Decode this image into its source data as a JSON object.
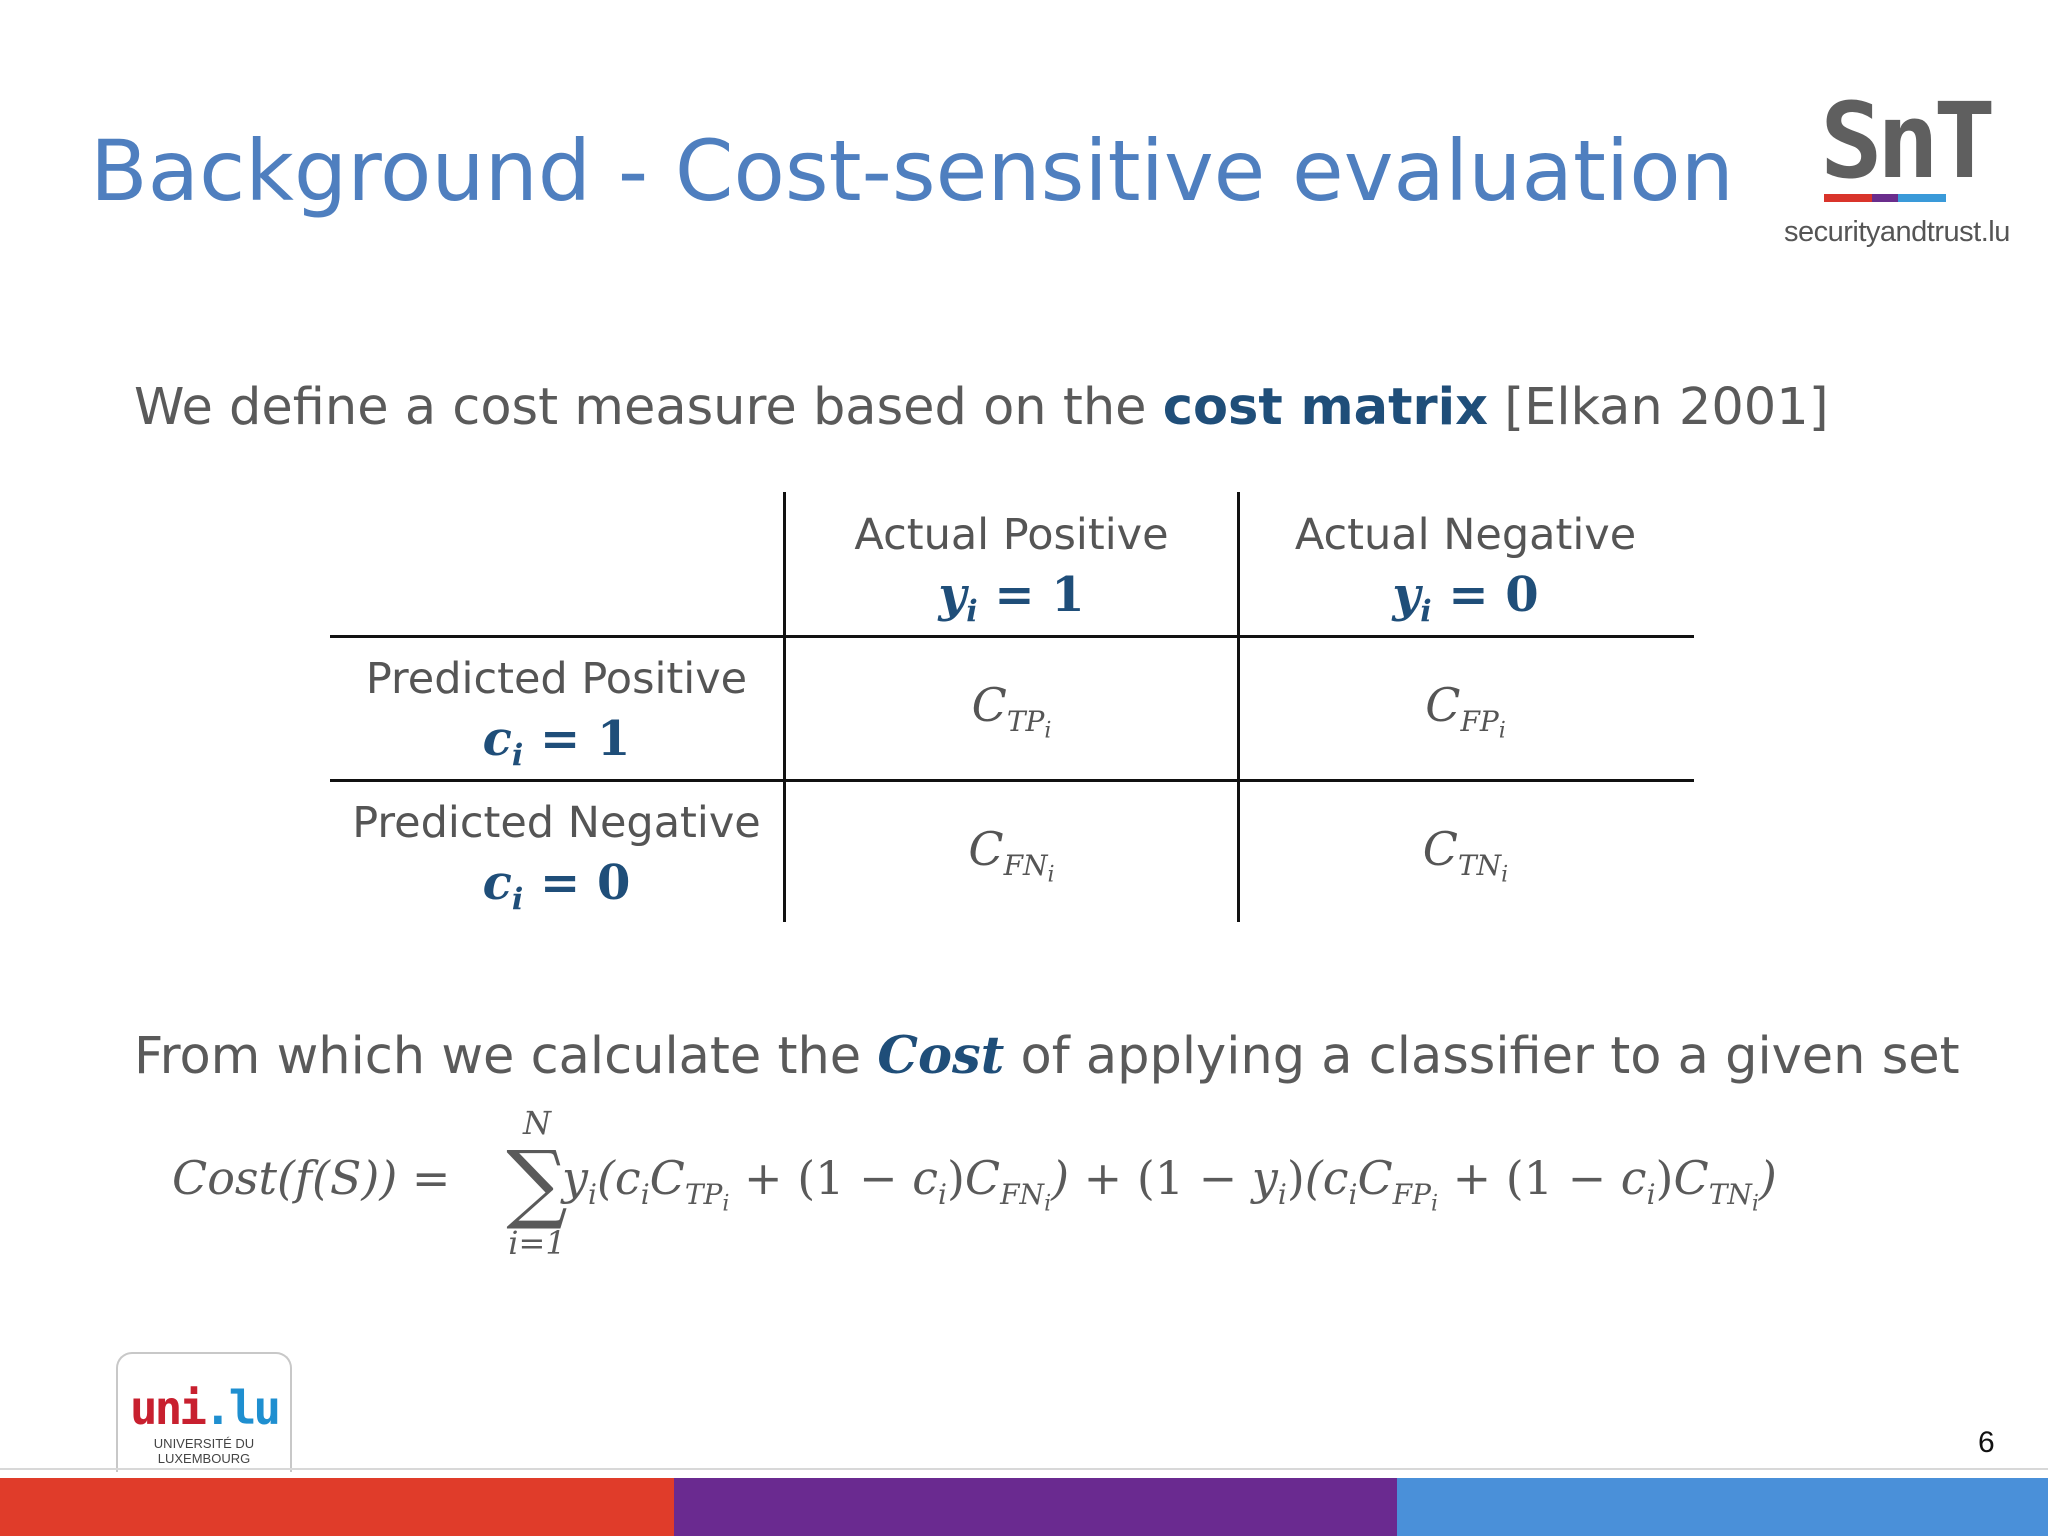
{
  "title": "Background - Cost-sensitive evaluation",
  "snt_logo": {
    "letters": "SnT",
    "domain": "securityandtrust.lu",
    "bar_colors": [
      "#d9342b",
      "#6a2d8c",
      "#3a9ad9"
    ]
  },
  "intro": {
    "before": "We define a cost measure based on the ",
    "emphasis": "cost matrix",
    "after": " [Elkan 2001]"
  },
  "matrix": {
    "columns": [
      {
        "label": "Actual Positive",
        "var": "y",
        "sub": "i",
        "eq": " = 1"
      },
      {
        "label": "Actual Negative",
        "var": "y",
        "sub": "i",
        "eq": " = 0"
      }
    ],
    "rows": [
      {
        "label": "Predicted Positive",
        "var": "c",
        "sub": "i",
        "eq": " = 1",
        "cells": [
          "TP",
          "FP"
        ]
      },
      {
        "label": "Predicted Negative",
        "var": "c",
        "sub": "i",
        "eq": " = 0",
        "cells": [
          "FN",
          "TN"
        ]
      }
    ],
    "cell_symbol": "C",
    "cell_index": "i"
  },
  "calc": {
    "before": "From which we calculate the ",
    "emphasis": "Cost",
    "after": " of applying a classifier to a given set"
  },
  "formula": {
    "lhs": "Cost(f(S)) =",
    "sum_upper": "N",
    "sum_lower": "i=1",
    "sigma": "∑"
  },
  "uni_logo": {
    "name_a": "uni",
    "name_b": ".lu",
    "line1": "UNIVERSITÉ DU",
    "line2": "LUXEMBOURG"
  },
  "footer_colors": [
    "#e03c2a",
    "#6a2a90",
    "#4a90d9"
  ],
  "page_number": "6"
}
